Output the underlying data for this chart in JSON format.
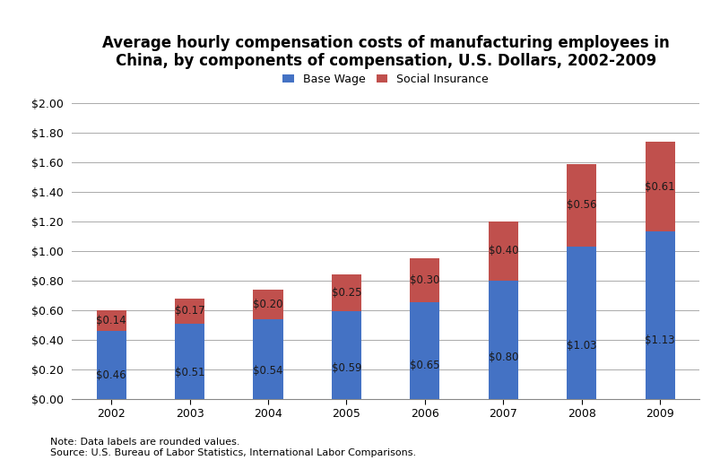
{
  "title": "Average hourly compensation costs of manufacturing employees in\nChina, by components of compensation, U.S. Dollars, 2002-2009",
  "years": [
    "2002",
    "2003",
    "2004",
    "2005",
    "2006",
    "2007",
    "2008",
    "2009"
  ],
  "base_wage": [
    0.46,
    0.51,
    0.54,
    0.59,
    0.65,
    0.8,
    1.03,
    1.13
  ],
  "social_insurance": [
    0.14,
    0.17,
    0.2,
    0.25,
    0.3,
    0.4,
    0.56,
    0.61
  ],
  "base_wage_color": "#4472C4",
  "social_insurance_color": "#C0504D",
  "legend_labels": [
    "Base Wage",
    "Social Insurance"
  ],
  "ylim": [
    0,
    2.0
  ],
  "yticks": [
    0.0,
    0.2,
    0.4,
    0.6,
    0.8,
    1.0,
    1.2,
    1.4,
    1.6,
    1.8,
    2.0
  ],
  "note": "Note: Data labels are rounded values.",
  "source": "Source: U.S. Bureau of Labor Statistics, International Labor Comparisons.",
  "background_color": "#FFFFFF",
  "grid_color": "#AAAAAA",
  "bar_width": 0.38,
  "title_fontsize": 12,
  "label_fontsize": 8.5,
  "tick_fontsize": 9,
  "legend_fontsize": 9,
  "note_fontsize": 8
}
